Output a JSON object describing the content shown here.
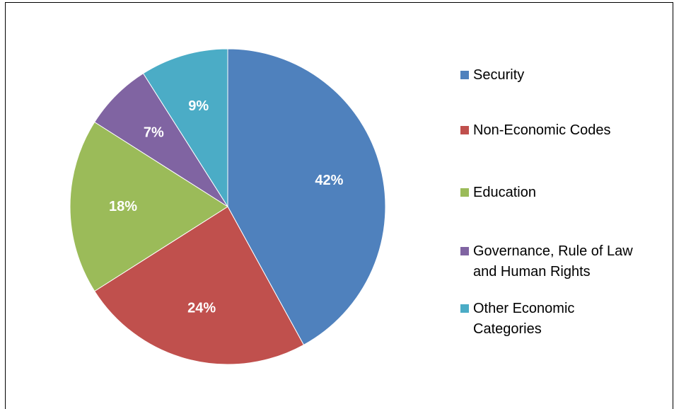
{
  "chart_data": {
    "type": "pie",
    "series": [
      {
        "label": "Security",
        "value": 42,
        "display": "42%",
        "color": "#4F81BD"
      },
      {
        "label": "Non-Economic Codes",
        "value": 24,
        "display": "24%",
        "color": "#C0504D"
      },
      {
        "label": "Education",
        "value": 18,
        "display": "18%",
        "color": "#9BBB59"
      },
      {
        "label": "Governance, Rule of Law and Human Rights",
        "value": 7,
        "display": "7%",
        "color": "#8064A2"
      },
      {
        "label": "Other Economic Categories",
        "value": 9,
        "display": "9%",
        "color": "#4BACC6"
      }
    ],
    "legend_position": "right",
    "start": "12 o'clock, clockwise"
  },
  "legend": {
    "items": [
      {
        "lines": [
          "Security"
        ]
      },
      {
        "lines": [
          "Non-Economic Codes"
        ]
      },
      {
        "lines": [
          "Education"
        ]
      },
      {
        "lines": [
          "Governance, Rule of Law",
          "and Human Rights"
        ]
      },
      {
        "lines": [
          "Other Economic",
          "Categories"
        ]
      }
    ]
  }
}
